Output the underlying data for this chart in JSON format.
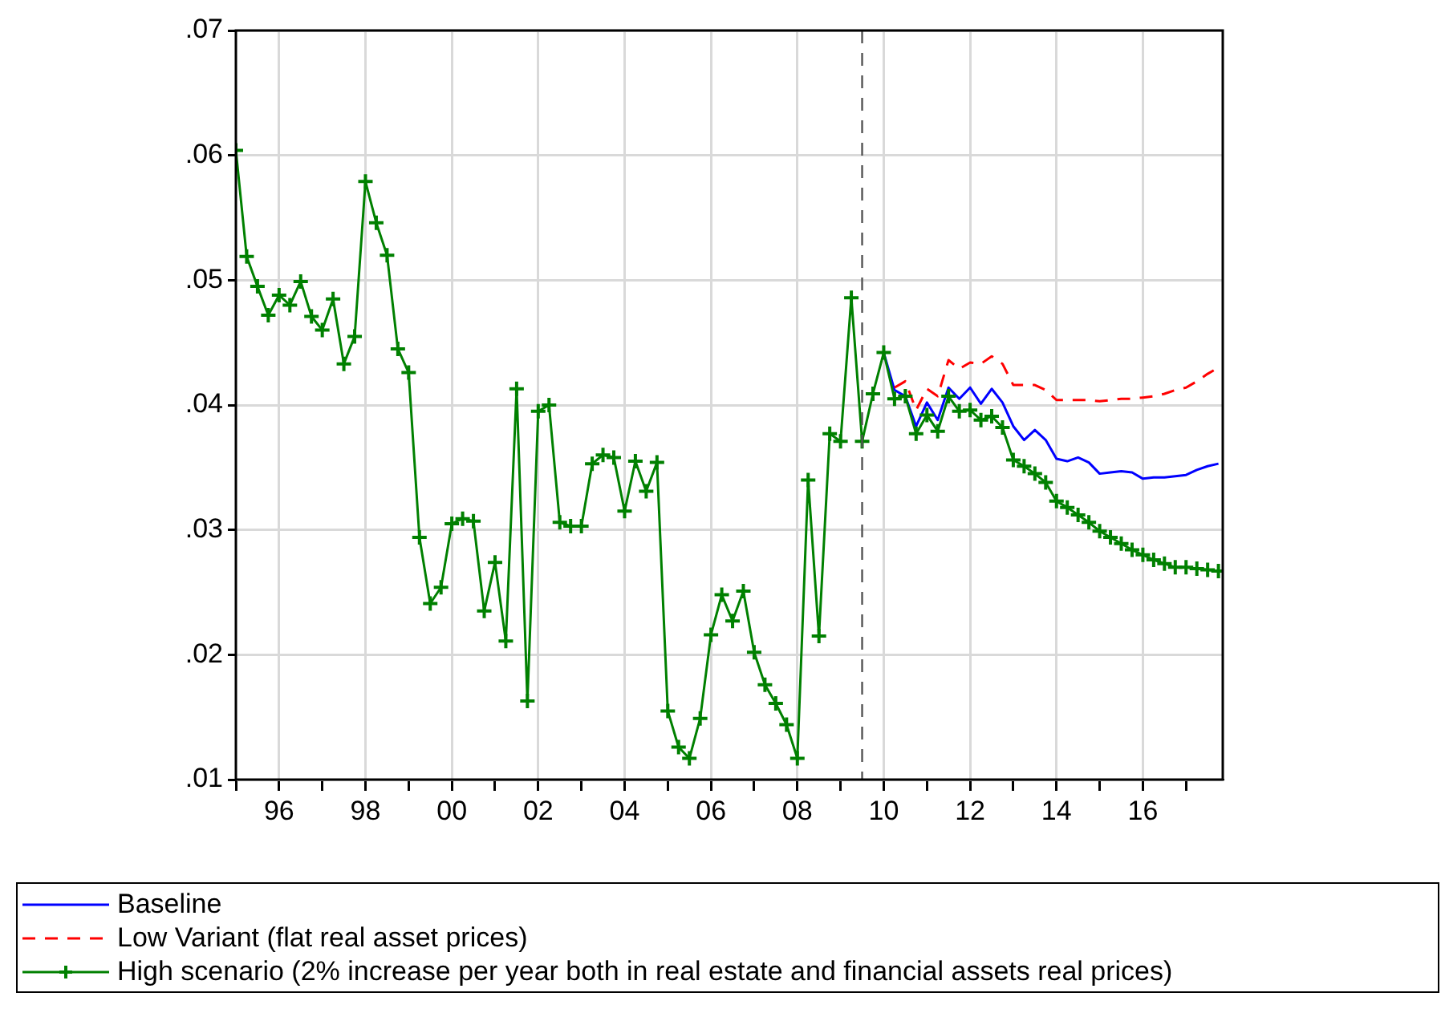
{
  "chart_data": {
    "type": "line",
    "x": [
      1995,
      1995.25,
      1995.5,
      1995.75,
      1996,
      1996.25,
      1996.5,
      1996.75,
      1997,
      1997.25,
      1997.5,
      1997.75,
      1998,
      1998.25,
      1998.5,
      1998.75,
      1999,
      1999.25,
      1999.5,
      1999.75,
      2000,
      2000.25,
      2000.5,
      2000.75,
      2001,
      2001.25,
      2001.5,
      2001.75,
      2002,
      2002.25,
      2002.5,
      2002.75,
      2003,
      2003.25,
      2003.5,
      2003.75,
      2004,
      2004.25,
      2004.5,
      2004.75,
      2005,
      2005.25,
      2005.5,
      2005.75,
      2006,
      2006.25,
      2006.5,
      2006.75,
      2007,
      2007.25,
      2007.5,
      2007.75,
      2008,
      2008.25,
      2008.5,
      2008.75,
      2009,
      2009.25,
      2009.5,
      2009.75,
      2010,
      2010.25,
      2010.5,
      2010.75,
      2011,
      2011.25,
      2011.5,
      2011.75,
      2012,
      2012.25,
      2012.5,
      2012.75,
      2013,
      2013.25,
      2013.5,
      2013.75,
      2014,
      2014.25,
      2014.5,
      2014.75,
      2015,
      2015.25,
      2015.5,
      2015.75,
      2016,
      2016.25,
      2016.5,
      2016.75,
      2017,
      2017.25,
      2017.5,
      2017.75
    ],
    "series": [
      {
        "name": "Baseline",
        "color": "#0000ff",
        "line_style": "solid",
        "marker": "none",
        "values": [
          null,
          null,
          null,
          null,
          null,
          null,
          null,
          null,
          null,
          null,
          null,
          null,
          null,
          null,
          null,
          null,
          null,
          null,
          null,
          null,
          null,
          null,
          null,
          null,
          null,
          null,
          null,
          null,
          null,
          null,
          null,
          null,
          null,
          null,
          null,
          null,
          null,
          null,
          null,
          null,
          null,
          null,
          null,
          null,
          null,
          null,
          null,
          null,
          null,
          null,
          null,
          null,
          null,
          null,
          null,
          null,
          null,
          null,
          null,
          null,
          0.0442,
          0.0412,
          0.0407,
          0.0383,
          0.0402,
          0.0388,
          0.0414,
          0.0405,
          0.0414,
          0.0401,
          0.0413,
          0.0402,
          0.0383,
          0.0372,
          0.038,
          0.0372,
          0.0357,
          0.0355,
          0.0358,
          0.0354,
          0.0345,
          0.0346,
          0.0347,
          0.0346,
          0.0341,
          0.0342,
          0.0342,
          0.0343,
          0.0344,
          0.0348,
          0.0351,
          0.0353
        ]
      },
      {
        "name": "Low Variant (flat real asset prices)",
        "color": "#ff0000",
        "line_style": "dashed",
        "marker": "none",
        "values": [
          null,
          null,
          null,
          null,
          null,
          null,
          null,
          null,
          null,
          null,
          null,
          null,
          null,
          null,
          null,
          null,
          null,
          null,
          null,
          null,
          null,
          null,
          null,
          null,
          null,
          null,
          null,
          null,
          null,
          null,
          null,
          null,
          null,
          null,
          null,
          null,
          null,
          null,
          null,
          null,
          null,
          null,
          null,
          null,
          null,
          null,
          null,
          null,
          null,
          null,
          null,
          null,
          null,
          null,
          null,
          null,
          null,
          null,
          null,
          null,
          null,
          0.0414,
          0.0419,
          0.0396,
          0.0413,
          0.0407,
          0.0436,
          0.0429,
          0.0434,
          0.0433,
          0.0439,
          0.0433,
          0.0416,
          0.0416,
          0.0416,
          0.0412,
          0.0404,
          0.0404,
          0.0404,
          0.0404,
          0.0403,
          0.0404,
          0.0405,
          0.0405,
          0.0406,
          0.0407,
          0.0409,
          0.0412,
          0.0414,
          0.0419,
          0.0425,
          0.043
        ]
      },
      {
        "name": "High scenario (2% increase per year both in real estate and  financial assets real prices)",
        "color": "#008000",
        "line_style": "solid",
        "marker": "cross",
        "values": [
          0.0604,
          0.0519,
          0.0495,
          0.0472,
          0.0488,
          0.048,
          0.0499,
          0.0471,
          0.046,
          0.0485,
          0.0433,
          0.0455,
          0.0579,
          0.0546,
          0.052,
          0.0445,
          0.0426,
          0.0294,
          0.0241,
          0.0254,
          0.0305,
          0.0309,
          0.0307,
          0.0235,
          0.0274,
          0.0211,
          0.0413,
          0.0163,
          0.0395,
          0.04,
          0.0306,
          0.0303,
          0.0303,
          0.0353,
          0.036,
          0.0358,
          0.0315,
          0.0355,
          0.0331,
          0.0354,
          0.0155,
          0.0126,
          0.0117,
          0.0149,
          0.0216,
          0.0248,
          0.0227,
          0.0251,
          0.0202,
          0.0176,
          0.0161,
          0.0144,
          0.0117,
          0.034,
          0.0215,
          0.0377,
          0.0371,
          0.0486,
          0.0371,
          0.0409,
          0.0442,
          0.0405,
          0.0407,
          0.0377,
          0.0392,
          0.0379,
          0.0407,
          0.0395,
          0.0396,
          0.0388,
          0.0391,
          0.0382,
          0.0356,
          0.0351,
          0.0345,
          0.0338,
          0.0323,
          0.0318,
          0.0312,
          0.0306,
          0.0299,
          0.0294,
          0.0289,
          0.0284,
          0.028,
          0.0276,
          0.0273,
          0.027,
          0.027,
          0.0269,
          0.0268,
          0.0267
        ]
      }
    ],
    "xlim": [
      1995,
      2017.85
    ],
    "xticks": [
      {
        "value": 1995,
        "label": null
      },
      {
        "value": 1996,
        "label": "96"
      },
      {
        "value": 1997,
        "label": null
      },
      {
        "value": 1998,
        "label": "98"
      },
      {
        "value": 1999,
        "label": null
      },
      {
        "value": 2000,
        "label": "00"
      },
      {
        "value": 2001,
        "label": null
      },
      {
        "value": 2002,
        "label": "02"
      },
      {
        "value": 2003,
        "label": null
      },
      {
        "value": 2004,
        "label": "04"
      },
      {
        "value": 2005,
        "label": null
      },
      {
        "value": 2006,
        "label": "06"
      },
      {
        "value": 2007,
        "label": null
      },
      {
        "value": 2008,
        "label": "08"
      },
      {
        "value": 2009,
        "label": null
      },
      {
        "value": 2010,
        "label": "10"
      },
      {
        "value": 2011,
        "label": null
      },
      {
        "value": 2012,
        "label": "12"
      },
      {
        "value": 2013,
        "label": null
      },
      {
        "value": 2014,
        "label": "14"
      },
      {
        "value": 2015,
        "label": null
      },
      {
        "value": 2016,
        "label": "16"
      },
      {
        "value": 2017,
        "label": null
      }
    ],
    "ylim": [
      0.01,
      0.07
    ],
    "yticks": [
      {
        "value": 0.01,
        "label": ".01"
      },
      {
        "value": 0.02,
        "label": ".02"
      },
      {
        "value": 0.03,
        "label": ".03"
      },
      {
        "value": 0.04,
        "label": ".04"
      },
      {
        "value": 0.05,
        "label": ".05"
      },
      {
        "value": 0.06,
        "label": ".06"
      },
      {
        "value": 0.07,
        "label": ".07"
      }
    ],
    "ref_lines": [
      {
        "axis": "x",
        "value": 2009.5,
        "color": "#555555",
        "line_style": "dashed"
      }
    ],
    "grid": true,
    "legend": "bottom"
  }
}
